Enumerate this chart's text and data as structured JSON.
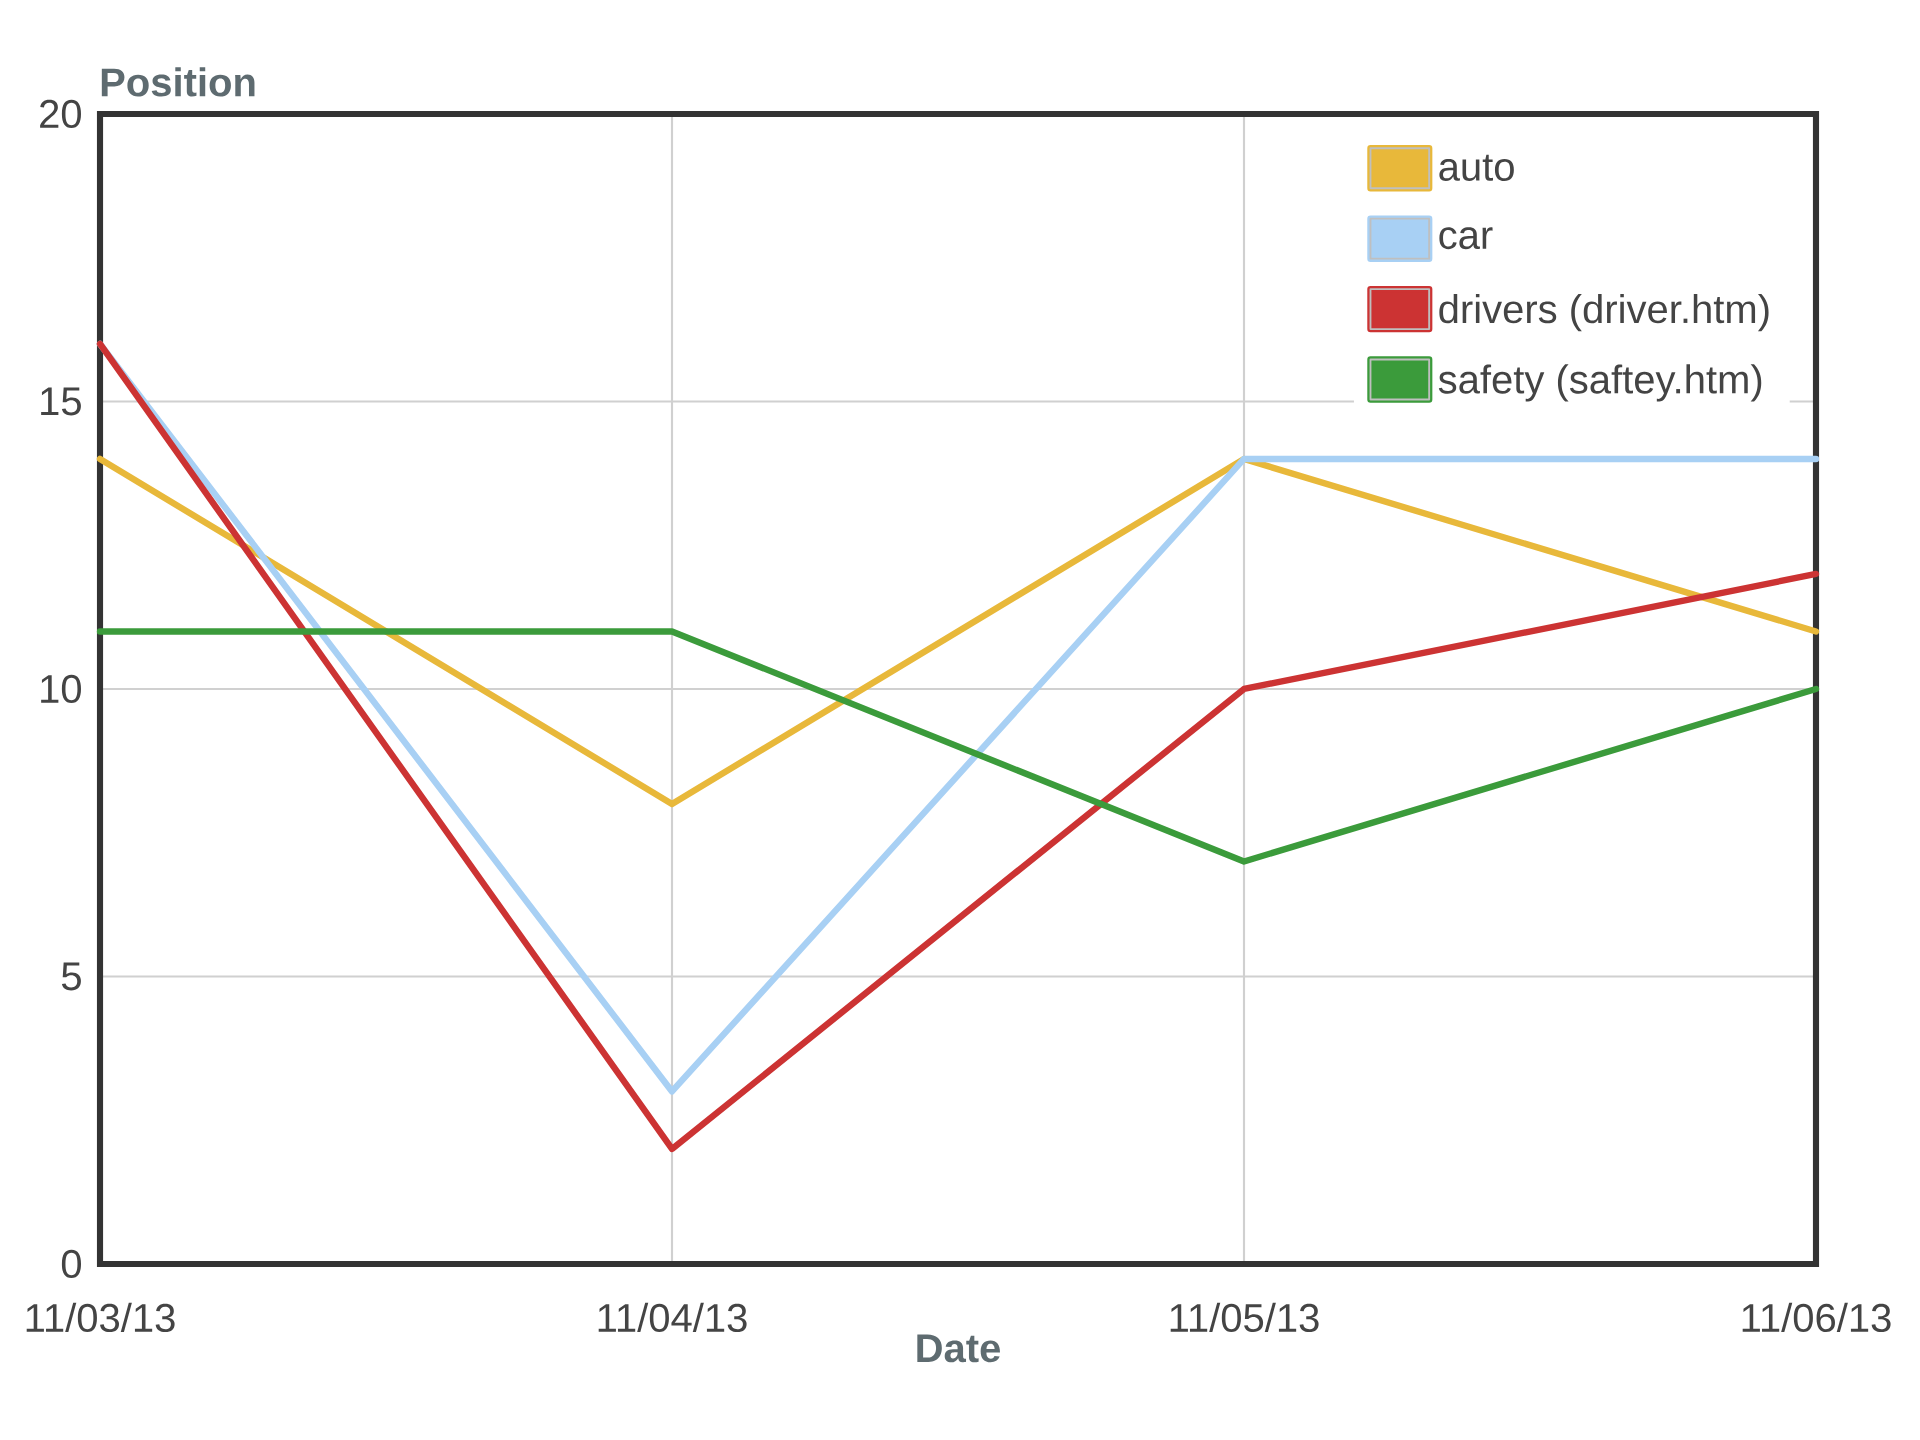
{
  "chart_data": {
    "type": "line",
    "ylabel": "Position",
    "xlabel": "Date",
    "categories": [
      "11/03/13",
      "11/04/13",
      "11/05/13",
      "11/06/13"
    ],
    "series": [
      {
        "name": "auto",
        "color": "#e8b83a",
        "values": [
          14,
          8,
          14,
          11
        ]
      },
      {
        "name": "car",
        "color": "#a8d0f4",
        "values": [
          16,
          3,
          14,
          14
        ]
      },
      {
        "name": "drivers (driver.htm)",
        "color": "#cc3333",
        "values": [
          16,
          2,
          10,
          12
        ]
      },
      {
        "name": "safety (saftey.htm)",
        "color": "#3b9b3b",
        "values": [
          11,
          11,
          7,
          10
        ]
      }
    ],
    "ylim": [
      0,
      20
    ],
    "yticks": [
      0,
      5,
      10,
      15,
      20
    ],
    "grid": true,
    "legend": "top right"
  }
}
